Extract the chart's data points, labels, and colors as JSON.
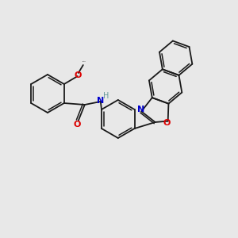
{
  "background_color": "#e8e8e8",
  "bond_color": "#1a1a1a",
  "figsize": [
    3.0,
    3.0
  ],
  "dpi": 100,
  "atom_colors": {
    "O": "#dd0000",
    "N": "#0000cc",
    "H": "#669999",
    "C": "#1a1a1a"
  },
  "lw": 1.3,
  "lw2": 1.1,
  "doff": 2.6
}
